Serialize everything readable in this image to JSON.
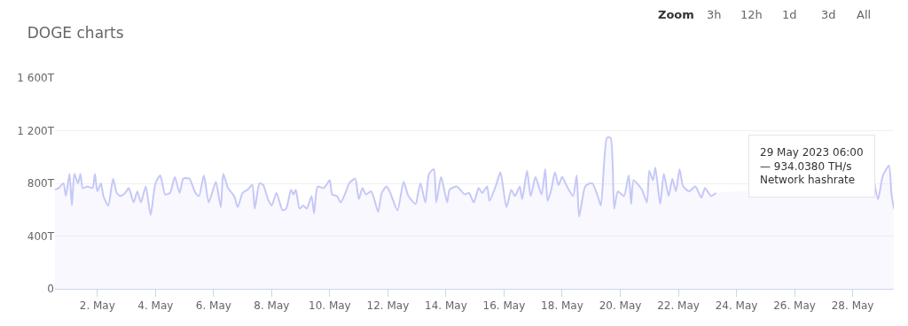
{
  "chart_data": {
    "type": "area",
    "title": "DOGE charts",
    "annotations": [
      "Zoom",
      "3h",
      "12h",
      "1d",
      "3d",
      "All",
      {
        "text": "29 May 2023 06:00\n— 934.0380 TH/s\nNetwork hashrate",
        "x": "2023-05-29T06:00",
        "y": 934.038
      }
    ],
    "x": [
      "2023-04-30T13:00",
      "2023-04-30T16:00",
      "2023-04-30T20:00",
      "2023-04-30T22:00",
      "2023-05-01T01:00",
      "2023-05-01T03:00",
      "2023-05-01T05:00",
      "2023-05-01T08:00",
      "2023-05-01T10:00",
      "2023-05-01T12:00",
      "2023-05-01T16:00",
      "2023-05-01T20:00",
      "2023-05-01T22:00",
      "2023-05-02T00:00",
      "2023-05-02T03:00",
      "2023-05-02T05:00",
      "2023-05-02T09:00",
      "2023-05-02T13:00",
      "2023-05-02T16:00",
      "2023-05-02T19:00",
      "2023-05-02T23:00",
      "2023-05-03T02:00",
      "2023-05-03T06:00",
      "2023-05-03T09:00",
      "2023-05-03T12:00",
      "2023-05-03T16:00",
      "2023-05-03T20:00",
      "2023-05-04T00:00",
      "2023-05-04T04:00",
      "2023-05-04T08:00",
      "2023-05-04T12:00",
      "2023-05-04T16:00",
      "2023-05-04T20:00",
      "2023-05-04T23:00",
      "2023-05-05T04:00",
      "2023-05-05T09:00",
      "2023-05-05T12:00",
      "2023-05-05T16:00",
      "2023-05-05T20:00",
      "2023-05-06T00:00",
      "2023-05-06T02:00",
      "2023-05-06T06:00",
      "2023-05-06T08:00",
      "2023-05-06T12:00",
      "2023-05-06T17:00",
      "2023-05-06T20:00",
      "2023-05-07T00:00",
      "2023-05-07T04:00",
      "2023-05-07T08:00",
      "2023-05-07T10:00",
      "2023-05-07T14:00",
      "2023-05-07T17:00",
      "2023-05-07T21:00",
      "2023-05-08T00:00",
      "2023-05-08T04:00",
      "2023-05-08T09:00",
      "2023-05-08T12:00",
      "2023-05-08T16:00",
      "2023-05-08T18:00",
      "2023-05-08T20:00",
      "2023-05-08T23:00",
      "2023-05-09T02:00",
      "2023-05-09T05:00",
      "2023-05-09T09:00",
      "2023-05-09T11:00",
      "2023-05-09T14:00",
      "2023-05-09T19:00",
      "2023-05-10T00:00",
      "2023-05-10T02:00",
      "2023-05-10T06:00",
      "2023-05-10T09:00",
      "2023-05-10T13:00",
      "2023-05-10T16:00",
      "2023-05-10T21:00",
      "2023-05-11T00:00",
      "2023-05-11T03:00",
      "2023-05-11T06:00",
      "2023-05-11T10:00",
      "2023-05-11T12:00",
      "2023-05-11T16:00",
      "2023-05-11T19:00",
      "2023-05-11T23:00",
      "2023-05-12T02:00",
      "2023-05-12T08:00",
      "2023-05-12T13:00",
      "2023-05-12T17:00",
      "2023-05-12T23:00",
      "2023-05-13T01:00",
      "2023-05-13T03:00",
      "2023-05-13T07:00",
      "2023-05-13T10:00",
      "2023-05-13T14:00",
      "2023-05-13T16:00",
      "2023-05-13T20:00",
      "2023-05-14T01:00",
      "2023-05-14T03:00",
      "2023-05-14T09:00",
      "2023-05-14T14:00",
      "2023-05-14T16:00",
      "2023-05-14T19:00",
      "2023-05-14T23:00",
      "2023-05-15T03:00",
      "2023-05-15T06:00",
      "2023-05-15T10:00",
      "2023-05-15T12:00",
      "2023-05-15T17:00",
      "2023-05-15T21:00",
      "2023-05-16T02:00",
      "2023-05-16T06:00",
      "2023-05-16T09:00",
      "2023-05-16T13:00",
      "2023-05-16T15:00",
      "2023-05-16T19:00",
      "2023-05-16T22:00",
      "2023-05-17T02:00",
      "2023-05-17T07:00",
      "2023-05-17T10:00",
      "2023-05-17T12:00",
      "2023-05-17T15:00",
      "2023-05-17T18:00",
      "2023-05-17T21:00",
      "2023-05-18T00:00",
      "2023-05-18T04:00",
      "2023-05-18T09:00",
      "2023-05-18T12:00",
      "2023-05-18T14:00",
      "2023-05-18T19:00",
      "2023-05-18T23:00",
      "2023-05-19T01:00",
      "2023-05-19T05:00",
      "2023-05-19T08:00",
      "2023-05-19T13:00",
      "2023-05-19T16:00",
      "2023-05-19T19:00",
      "2023-05-19T22:00",
      "2023-05-20T03:00",
      "2023-05-20T07:00",
      "2023-05-20T09:00",
      "2023-05-20T11:00",
      "2023-05-20T15:00",
      "2023-05-20T18:00",
      "2023-05-20T22:00",
      "2023-05-21T00:00",
      "2023-05-21T03:00",
      "2023-05-21T05:00",
      "2023-05-21T09:00",
      "2023-05-21T12:00",
      "2023-05-21T16:00",
      "2023-05-21T19:00",
      "2023-05-21T22:00",
      "2023-05-22T01:00",
      "2023-05-22T04:00",
      "2023-05-22T09:00",
      "2023-05-22T14:00",
      "2023-05-22T19:00",
      "2023-05-22T22:00",
      "2023-05-23T03:00",
      "2023-05-23T07:00",
      "2023-05-25T00:00",
      "2023-05-28T18:00",
      "2023-05-28T21:00",
      "2023-05-29T01:00",
      "2023-05-29T06:00",
      "2023-05-29T08:00",
      "2023-05-29T10:00"
    ],
    "series": [
      {
        "color": "#c5c8f7",
        "values": [
          752,
          764,
          800,
          704,
          872,
          632,
          872,
          800,
          872,
          764,
          776,
          764,
          872,
          740,
          800,
          704,
          632,
          836,
          728,
          704,
          728,
          764,
          656,
          740,
          656,
          776,
          560,
          800,
          860,
          716,
          728,
          848,
          728,
          836,
          836,
          728,
          704,
          860,
          656,
          764,
          812,
          620,
          872,
          764,
          704,
          620,
          728,
          752,
          788,
          608,
          800,
          788,
          680,
          632,
          728,
          596,
          608,
          752,
          716,
          752,
          608,
          632,
          608,
          704,
          572,
          776,
          764,
          824,
          716,
          704,
          656,
          728,
          800,
          836,
          680,
          764,
          716,
          740,
          704,
          584,
          728,
          776,
          728,
          596,
          812,
          704,
          644,
          728,
          800,
          656,
          872,
          908,
          656,
          848,
          656,
          752,
          776,
          728,
          716,
          728,
          656,
          764,
          728,
          776,
          668,
          776,
          884,
          620,
          752,
          704,
          776,
          680,
          896,
          704,
          848,
          716,
          908,
          668,
          752,
          884,
          788,
          848,
          776,
          704,
          860,
          548,
          776,
          800,
          800,
          716,
          632,
          1147,
          1147,
          608,
          740,
          704,
          860,
          644,
          824,
          788,
          752,
          656,
          896,
          824,
          920,
          644,
          872,
          704,
          836,
          740,
          908,
          776,
          740,
          776,
          692,
          764,
          704,
          728,
          null,
          800,
          680,
          860,
          934,
          728,
          608
        ]
      }
    ],
    "xlim": [
      "2023-04-30T13:00",
      "2023-05-29T10:00"
    ],
    "xticks": [
      {
        "value": "2023-05-02",
        "label": "2. May"
      },
      {
        "value": "2023-05-04",
        "label": "4. May"
      },
      {
        "value": "2023-05-06",
        "label": "6. May"
      },
      {
        "value": "2023-05-08",
        "label": "8. May"
      },
      {
        "value": "2023-05-10",
        "label": "10. May"
      },
      {
        "value": "2023-05-12",
        "label": "12. May"
      },
      {
        "value": "2023-05-14",
        "label": "14. May"
      },
      {
        "value": "2023-05-16",
        "label": "16. May"
      },
      {
        "value": "2023-05-18",
        "label": "18. May"
      },
      {
        "value": "2023-05-20",
        "label": "20. May"
      },
      {
        "value": "2023-05-22",
        "label": "22. May"
      },
      {
        "value": "2023-05-24",
        "label": "24. May"
      },
      {
        "value": "2023-05-26",
        "label": "26. May"
      },
      {
        "value": "2023-05-28",
        "label": "28. May"
      }
    ],
    "ylim": [
      0,
      1600
    ],
    "yticks": [
      0,
      {
        "value": 400,
        "label": "400T"
      },
      {
        "value": 800,
        "label": "800T"
      },
      {
        "value": 1200,
        "label": "1 200T"
      },
      {
        "value": 1600,
        "label": "1 600T"
      }
    ],
    "grid": "y"
  }
}
